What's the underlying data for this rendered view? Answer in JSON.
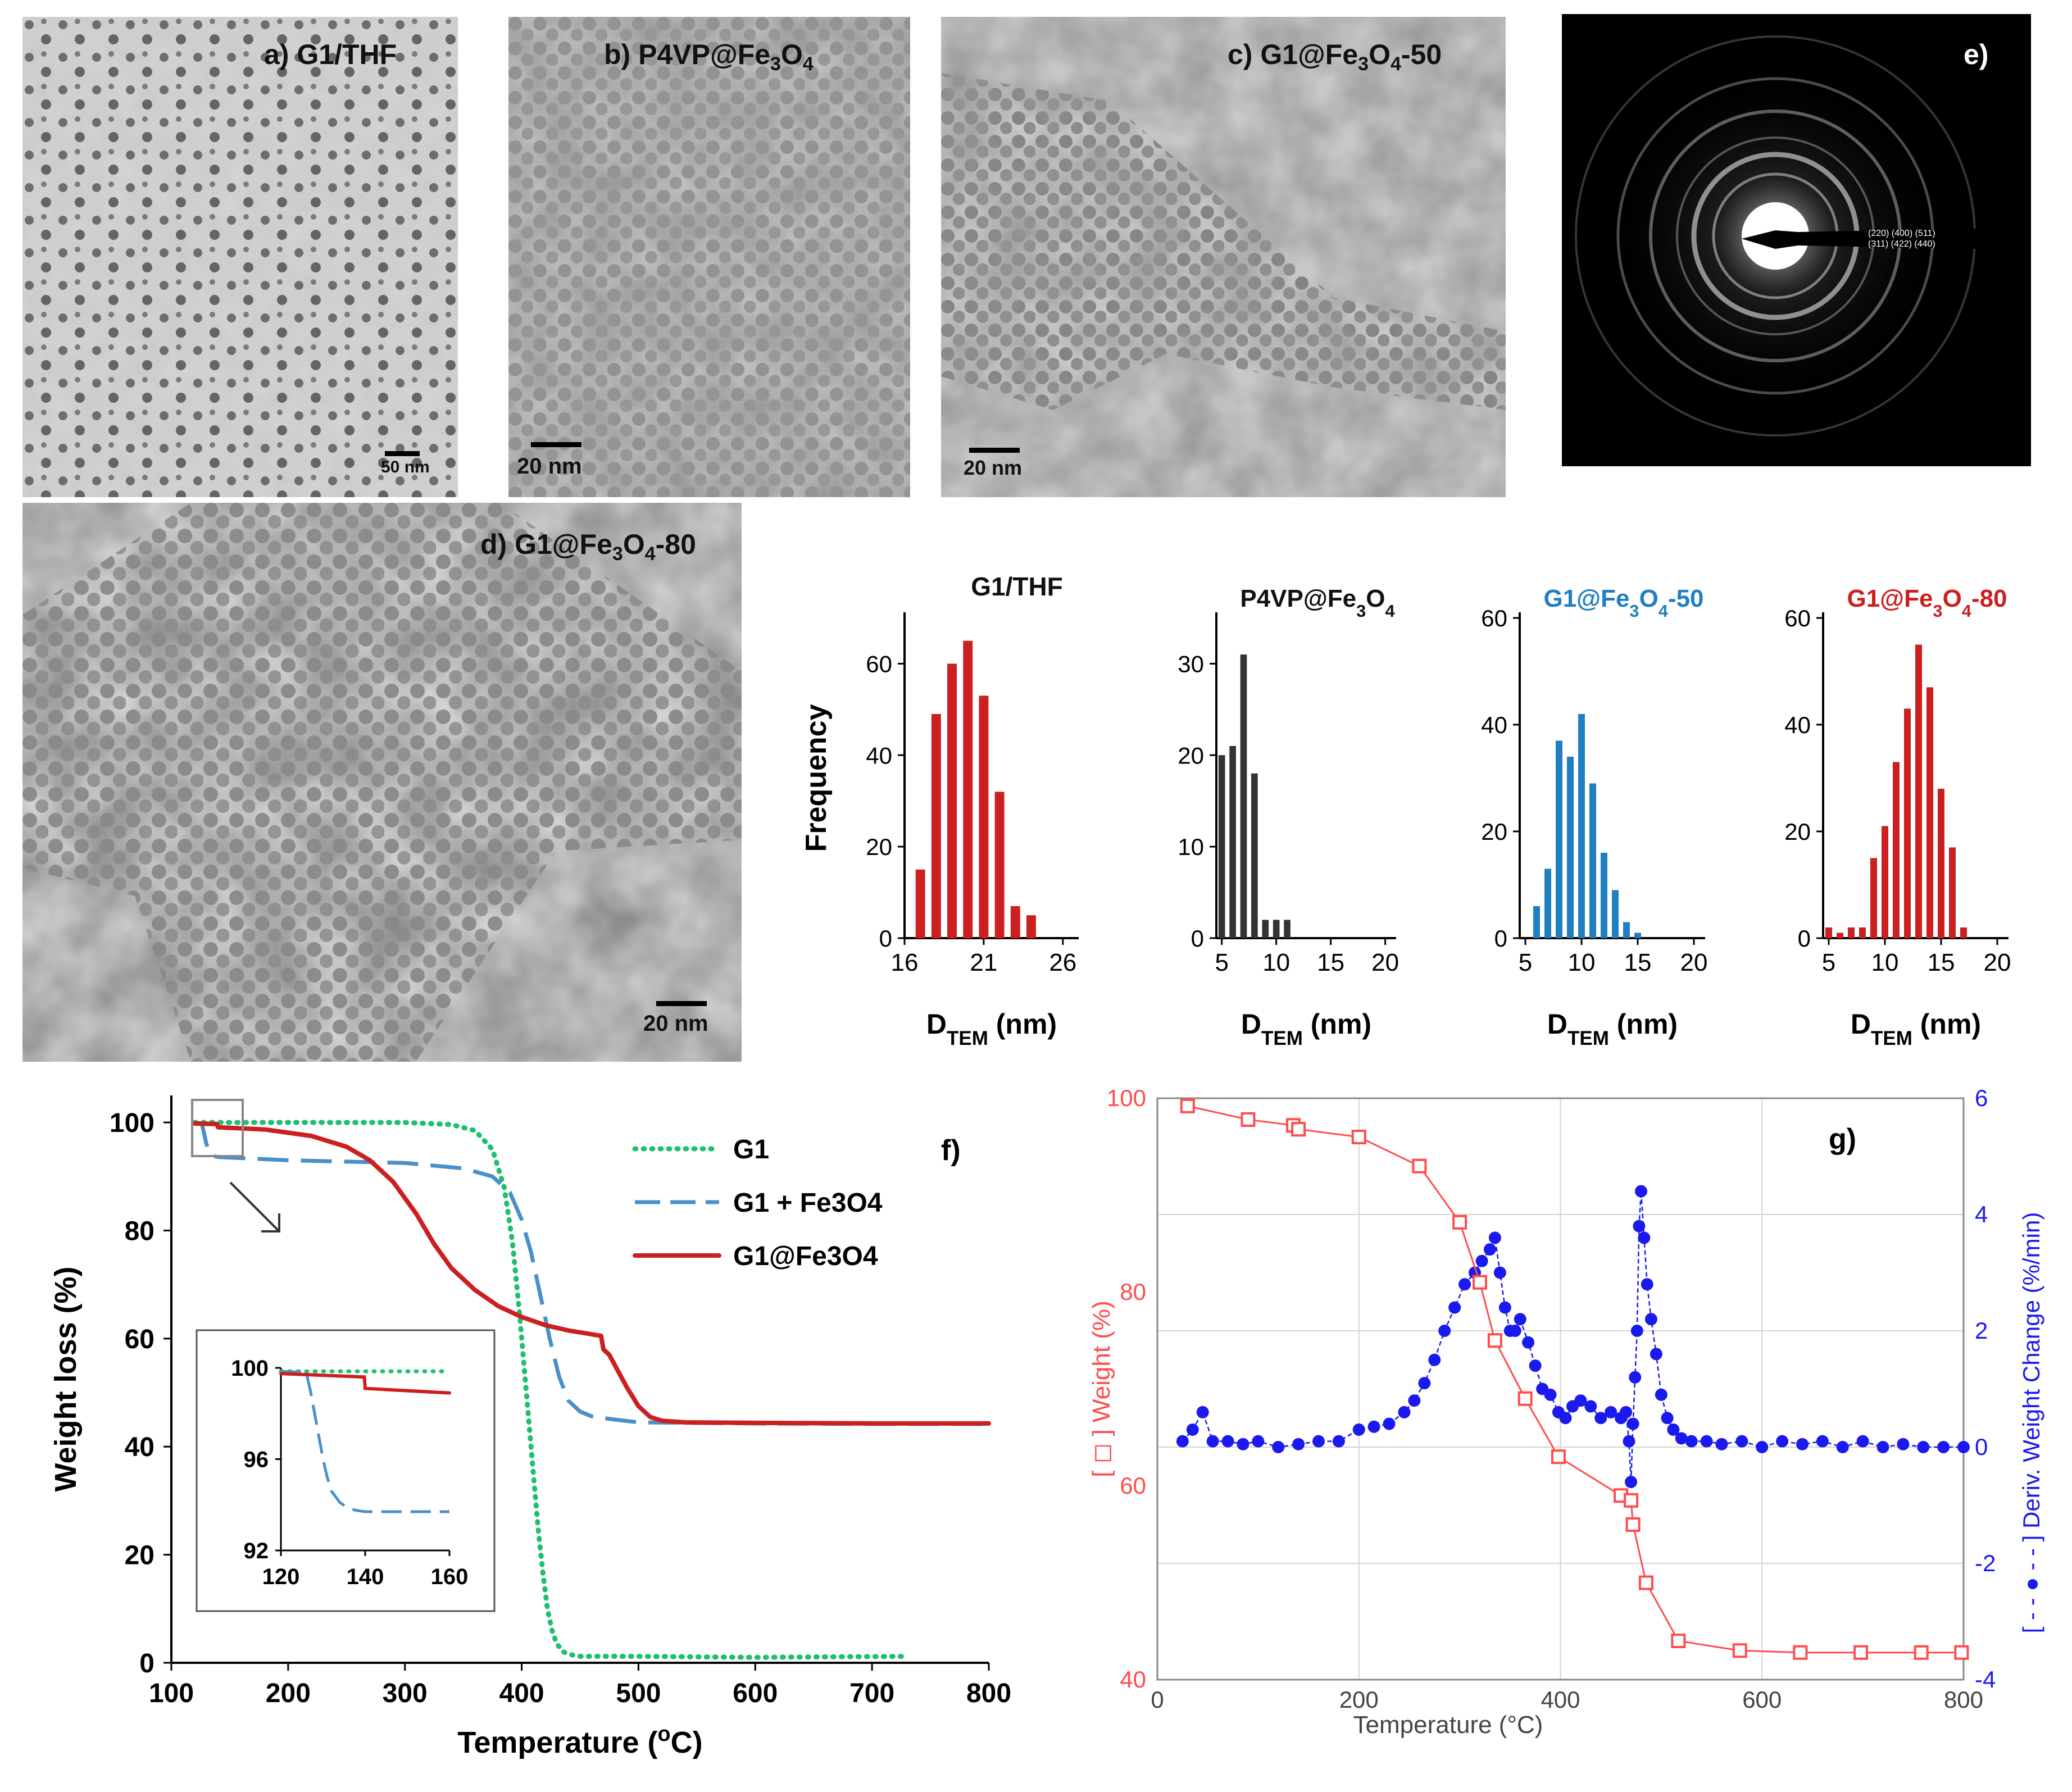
{
  "tem_panels": {
    "a": {
      "label": "a) G1/THF",
      "scale": "50 nm"
    },
    "b": {
      "label": "b) P4VP@Fe3O4",
      "label_main": "b) P4VP@Fe",
      "label_sub": "3",
      "label_mid": "O",
      "label_sub2": "4",
      "scale": "20 nm"
    },
    "c": {
      "label_main": "c) G1@Fe",
      "label_sub": "3",
      "label_mid": "O",
      "label_sub2": "4",
      "label_end": "-50",
      "scale": "20 nm"
    },
    "d": {
      "label_main": "d) G1@Fe",
      "label_sub": "3",
      "label_mid": "O",
      "label_sub2": "4",
      "label_end": "-80",
      "scale": "20 nm"
    },
    "e": {
      "label": "e)",
      "hkl_top": "(220)   (400)   (511)",
      "hkl_bottom": "(311)    (422)  (440)"
    }
  },
  "colors": {
    "red": "#cc1f1f",
    "black": "#333333",
    "blue": "#1f7fc0",
    "green": "#1fbf6f",
    "steel": "#4a90c8",
    "navy": "#1a1aee",
    "pink": "#ff4d4d"
  },
  "chart_data": [
    {
      "type": "bar",
      "title": "G1/THF",
      "xlabel": "D",
      "xlabel_sub": "TEM",
      "xlabel_unit": " (nm)",
      "ylabel": "Frequency",
      "x": [
        17,
        18,
        19,
        20,
        21,
        22,
        23,
        24
      ],
      "values": [
        15,
        49,
        60,
        65,
        53,
        32,
        7,
        5
      ],
      "xlim": [
        16,
        27
      ],
      "ylim": [
        0,
        70
      ],
      "xticks": [
        "16",
        "21",
        "26"
      ],
      "xtick_vals": [
        16,
        21,
        26
      ],
      "yticks": [
        "0",
        "20",
        "40",
        "60"
      ],
      "ytick_vals": [
        0,
        20,
        40,
        60
      ],
      "color": "#cc1f1f"
    },
    {
      "type": "bar",
      "title_main": "P4VP@Fe",
      "title_sub": "3",
      "title_mid": "O",
      "title_sub2": "4",
      "xlabel": "D",
      "xlabel_sub": "TEM",
      "xlabel_unit": " (nm)",
      "x": [
        5,
        6,
        7,
        8,
        9,
        10,
        11
      ],
      "values": [
        20,
        21,
        31,
        18,
        2,
        2,
        2
      ],
      "xlim": [
        4.5,
        21
      ],
      "ylim": [
        0,
        35
      ],
      "xticks": [
        "5",
        "10",
        "15",
        "20"
      ],
      "xtick_vals": [
        5,
        10,
        15,
        20
      ],
      "yticks": [
        "0",
        "10",
        "20",
        "30"
      ],
      "ytick_vals": [
        0,
        10,
        20,
        30
      ],
      "color": "#333333"
    },
    {
      "type": "bar",
      "title_main": "G1@Fe",
      "title_sub": "3",
      "title_mid": "O",
      "title_sub2": "4",
      "title_end": "-50",
      "xlabel": "D",
      "xlabel_sub": "TEM",
      "xlabel_unit": " (nm)",
      "x": [
        6,
        7,
        8,
        9,
        10,
        11,
        12,
        13,
        14,
        15
      ],
      "values": [
        6,
        13,
        37,
        34,
        42,
        29,
        16,
        9,
        3,
        1
      ],
      "xlim": [
        4.5,
        21
      ],
      "ylim": [
        0,
        60
      ],
      "xticks": [
        "5",
        "10",
        "15",
        "20"
      ],
      "xtick_vals": [
        5,
        10,
        15,
        20
      ],
      "yticks": [
        "0",
        "20",
        "40",
        "60"
      ],
      "ytick_vals": [
        0,
        20,
        40,
        60
      ],
      "color": "#1f7fc0"
    },
    {
      "type": "bar",
      "title_main": "G1@Fe",
      "title_sub": "3",
      "title_mid": "O",
      "title_sub2": "4",
      "title_end": "-80",
      "xlabel": "D",
      "xlabel_sub": "TEM",
      "xlabel_unit": " (nm)",
      "x": [
        5,
        6,
        7,
        8,
        9,
        10,
        11,
        12,
        13,
        14,
        15,
        16,
        17
      ],
      "values": [
        2,
        1,
        2,
        2,
        15,
        21,
        33,
        43,
        55,
        47,
        28,
        17,
        2
      ],
      "xlim": [
        4.5,
        21
      ],
      "ylim": [
        0,
        60
      ],
      "xticks": [
        "5",
        "10",
        "15",
        "20"
      ],
      "xtick_vals": [
        5,
        10,
        15,
        20
      ],
      "yticks": [
        "0",
        "20",
        "40",
        "60"
      ],
      "ytick_vals": [
        0,
        20,
        40,
        60
      ],
      "color": "#cc1f1f"
    },
    {
      "type": "line",
      "panel": "f)",
      "xlabel": "Temperature (",
      "xlabel_sup": "o",
      "xlabel_end": "C)",
      "ylabel": "Weight loss (%)",
      "xlim": [
        100,
        800
      ],
      "ylim": [
        0,
        105
      ],
      "xticks": [
        "100",
        "200",
        "300",
        "400",
        "500",
        "600",
        "700",
        "800"
      ],
      "xtick_vals": [
        100,
        200,
        300,
        400,
        500,
        600,
        700,
        800
      ],
      "yticks": [
        "0",
        "20",
        "40",
        "60",
        "80",
        "100"
      ],
      "ytick_vals": [
        0,
        20,
        40,
        60,
        80,
        100
      ],
      "series": [
        {
          "name": "G1",
          "style": "dotted",
          "color": "#1fbf6f",
          "x": [
            120,
            300,
            340,
            360,
            375,
            385,
            392,
            398,
            402,
            406,
            410,
            414,
            418,
            422,
            426,
            430,
            436,
            442,
            450,
            500,
            600,
            730
          ],
          "y": [
            100,
            100,
            99.6,
            98.5,
            95,
            88,
            78,
            65,
            55,
            45,
            35,
            25,
            17,
            10,
            6,
            3.5,
            2,
            1.5,
            1.2,
            1.2,
            1,
            1.2
          ]
        },
        {
          "name": "G1 + Fe3O4",
          "style": "dashed",
          "color": "#4a90c8",
          "x": [
            120,
            126,
            128,
            130,
            133,
            136,
            140,
            200,
            300,
            350,
            375,
            390,
            400,
            408,
            416,
            424,
            432,
            440,
            450,
            460,
            480,
            500,
            600,
            700,
            800
          ],
          "y": [
            100,
            99.8,
            98,
            96,
            94.5,
            93.8,
            93.6,
            93,
            92.5,
            91.5,
            90,
            87,
            82,
            76,
            68,
            60,
            53,
            48.5,
            46.5,
            45.6,
            45,
            44.5,
            44.3,
            44.2,
            44.2
          ]
        },
        {
          "name": "G1@Fe3O4",
          "style": "solid",
          "color": "#cc1f1f",
          "x": [
            120,
            139,
            140,
            180,
            220,
            250,
            270,
            290,
            310,
            325,
            340,
            360,
            380,
            400,
            420,
            440,
            460,
            468,
            470,
            475,
            480,
            490,
            500,
            510,
            520,
            540,
            600,
            700,
            800
          ],
          "y": [
            99.8,
            99.7,
            99.1,
            98.7,
            97.5,
            95.5,
            93,
            89,
            83,
            77.5,
            73,
            69,
            66,
            64,
            62.5,
            61.5,
            60.8,
            60.5,
            58,
            57,
            55,
            51,
            47.5,
            45.5,
            44.8,
            44.5,
            44.4,
            44.3,
            44.3
          ]
        }
      ],
      "inset": {
        "xlim": [
          120,
          160
        ],
        "ylim": [
          92,
          100
        ],
        "xticks": [
          "120",
          "140",
          "160"
        ],
        "xtick_vals": [
          120,
          140,
          160
        ],
        "yticks": [
          "92",
          "96",
          "100"
        ],
        "ytick_vals": [
          92,
          96,
          100
        ],
        "series": [
          {
            "name": "G1",
            "x": [
              120,
              160
            ],
            "y": [
              99.85,
              99.85
            ]
          },
          {
            "name": "G1 + Fe3O4",
            "x": [
              120,
              126,
              127,
              128,
              129,
              130,
              131,
              132,
              134,
              136,
              138,
              140,
              160
            ],
            "y": [
              99.85,
              99.8,
              99,
              98,
              97,
              96,
              95.2,
              94.6,
              94.1,
              93.85,
              93.75,
              93.7,
              93.7
            ]
          },
          {
            "name": "G1@Fe3O4",
            "x": [
              120,
              139.8,
              140,
              160
            ],
            "y": [
              99.75,
              99.6,
              99.1,
              98.9
            ]
          }
        ]
      }
    },
    {
      "type": "line",
      "panel": "g)",
      "xlabel": "Temperature (°C)",
      "ylabel_left": "[ ◻ ] Weight (%)",
      "ylabel_right": "[ - - ● - - ] Deriv. Weight Change (%/min)",
      "xlim": [
        0,
        800
      ],
      "ylim": [
        40,
        100
      ],
      "y2lim": [
        -4,
        6
      ],
      "xticks": [
        "0",
        "200",
        "400",
        "600",
        "800"
      ],
      "xtick_vals": [
        0,
        200,
        400,
        600,
        800
      ],
      "yticks": [
        "40",
        "60",
        "80",
        "100"
      ],
      "ytick_vals": [
        40,
        60,
        80,
        100
      ],
      "y2ticks": [
        "-4",
        "-2",
        "0",
        "2",
        "4",
        "6"
      ],
      "y2tick_vals": [
        -4,
        -2,
        0,
        2,
        4,
        6
      ],
      "series": [
        {
          "name": "Weight",
          "axis": "left",
          "color": "#ff4d4d",
          "x": [
            30,
            90,
            135,
            140,
            200,
            260,
            300,
            320,
            335,
            365,
            398,
            460,
            470,
            472,
            485,
            517,
            578,
            638,
            698,
            758,
            798
          ],
          "y": [
            99.2,
            97.8,
            97.2,
            96.8,
            96,
            93,
            87.2,
            81,
            75,
            69,
            63,
            59,
            58.5,
            56,
            50,
            44,
            43,
            42.8,
            42.8,
            42.8,
            42.8
          ]
        },
        {
          "name": "Deriv. Weight Change",
          "axis": "right",
          "color": "#1a1aee",
          "x": [
            25,
            35,
            45,
            55,
            70,
            85,
            100,
            120,
            140,
            160,
            180,
            200,
            215,
            230,
            245,
            255,
            265,
            275,
            285,
            295,
            305,
            315,
            322,
            330,
            335,
            340,
            345,
            350,
            355,
            360,
            368,
            375,
            382,
            390,
            398,
            405,
            412,
            420,
            430,
            440,
            450,
            460,
            465,
            468,
            470,
            472,
            474,
            476,
            478,
            480,
            483,
            486,
            490,
            495,
            500,
            506,
            512,
            520,
            530,
            545,
            560,
            580,
            600,
            620,
            640,
            660,
            680,
            700,
            720,
            740,
            760,
            780,
            800
          ],
          "y": [
            0.1,
            0.3,
            0.6,
            0.1,
            0.1,
            0.05,
            0.1,
            0,
            0.05,
            0.1,
            0.1,
            0.3,
            0.35,
            0.4,
            0.6,
            0.8,
            1.1,
            1.5,
            2.0,
            2.4,
            2.8,
            3.0,
            3.2,
            3.4,
            3.6,
            3.0,
            2.4,
            2.0,
            2.0,
            2.2,
            1.8,
            1.4,
            1.0,
            0.9,
            0.6,
            0.5,
            0.7,
            0.8,
            0.7,
            0.5,
            0.6,
            0.5,
            0.6,
            0.1,
            -0.6,
            0.4,
            1.2,
            2.0,
            3.8,
            4.4,
            3.6,
            2.8,
            2.2,
            1.6,
            0.9,
            0.5,
            0.3,
            0.15,
            0.1,
            0.1,
            0.05,
            0.1,
            0,
            0.1,
            0.05,
            0.1,
            0,
            0.1,
            0,
            0.05,
            0,
            0,
            0
          ]
        }
      ]
    }
  ]
}
